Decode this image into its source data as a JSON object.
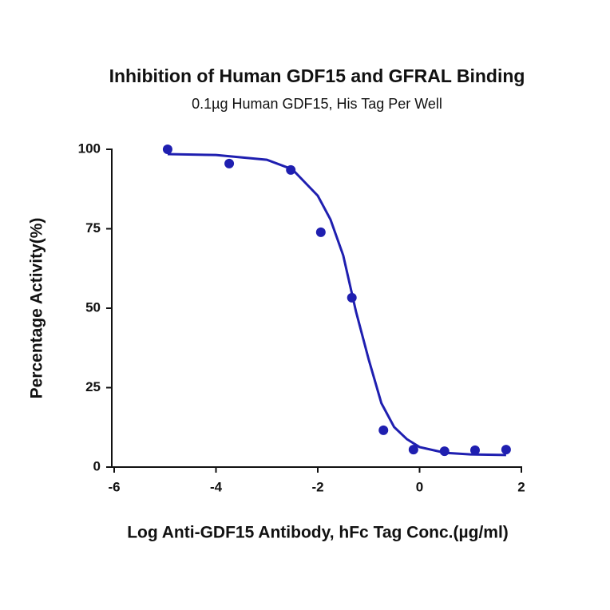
{
  "chart_data": {
    "type": "scatter",
    "title": "Inhibition of Human GDF15 and GFRAL Binding",
    "subtitle": "0.1µg Human GDF15, His Tag Per Well",
    "x_label": "Log Anti-GDF15 Antibody, hFc Tag Conc.(µg/ml)",
    "y_label": "Percentage Activity(%)",
    "x": [
      -4.95,
      -3.74,
      -2.53,
      -1.94,
      -1.33,
      -0.71,
      -0.12,
      0.49,
      1.09,
      1.7
    ],
    "values": [
      100,
      95.5,
      93.5,
      73.9,
      53.3,
      11.6,
      5.5,
      5.0,
      5.3,
      5.5
    ],
    "color": "#1f1fb0",
    "fit_curve": {
      "x": [
        -4.95,
        -4,
        -3,
        -2.5,
        -2,
        -1.75,
        -1.5,
        -1.25,
        -1,
        -0.75,
        -0.5,
        -0.25,
        0,
        0.5,
        1,
        1.7
      ],
      "values": [
        98.5,
        98.2,
        96.7,
        93.7,
        85.4,
        77.9,
        66.6,
        49.0,
        33.9,
        20.1,
        12.6,
        8.8,
        6.3,
        4.5,
        4.0,
        3.8
      ],
      "color": "#1f1fb0"
    },
    "xlim": [
      -6,
      2
    ],
    "xticks": [
      -6,
      -4,
      -2,
      0,
      2
    ],
    "ylim": [
      0,
      100
    ],
    "yticks": [
      0,
      25,
      50,
      75,
      100
    ]
  }
}
